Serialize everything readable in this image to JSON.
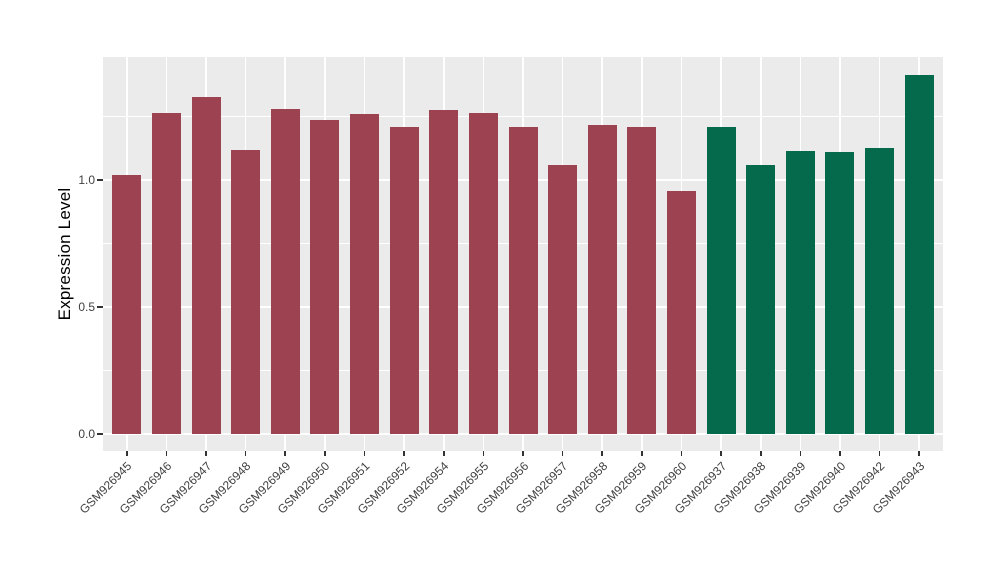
{
  "chart_data": {
    "type": "bar",
    "title": "",
    "xlabel": "",
    "ylabel": "Expression Level",
    "legend": "none",
    "style": "ggplot grey panel with white major/minor gridlines, no bar borders",
    "panel_background": "#EBEBEB",
    "gridline_color": "#FFFFFF",
    "ylim": [
      -0.07,
      1.49
    ],
    "y_ticks": [
      {
        "label": "0.0",
        "value": 0.0
      },
      {
        "label": "0.5",
        "value": 0.5
      },
      {
        "label": "1.0",
        "value": 1.0
      }
    ],
    "y_minor_gridlines": [
      0.25,
      0.75,
      1.25
    ],
    "bar_colors_by_group": {
      "maroon": "#9D4251",
      "green": "#056A4C"
    },
    "categories": [
      "GSM926945",
      "GSM926946",
      "GSM926947",
      "GSM926948",
      "GSM926949",
      "GSM926950",
      "GSM926951",
      "GSM926952",
      "GSM926954",
      "GSM926955",
      "GSM926956",
      "GSM926957",
      "GSM926958",
      "GSM926959",
      "GSM926960",
      "GSM926937",
      "GSM926938",
      "GSM926939",
      "GSM926940",
      "GSM926942",
      "GSM926943"
    ],
    "values": [
      1.02,
      1.265,
      1.325,
      1.12,
      1.28,
      1.235,
      1.26,
      1.21,
      1.275,
      1.265,
      1.21,
      1.06,
      1.215,
      1.21,
      0.955,
      1.21,
      1.06,
      1.115,
      1.11,
      1.125,
      1.415
    ],
    "groups": [
      "maroon",
      "maroon",
      "maroon",
      "maroon",
      "maroon",
      "maroon",
      "maroon",
      "maroon",
      "maroon",
      "maroon",
      "maroon",
      "maroon",
      "maroon",
      "maroon",
      "maroon",
      "green",
      "green",
      "green",
      "green",
      "green",
      "green"
    ]
  }
}
